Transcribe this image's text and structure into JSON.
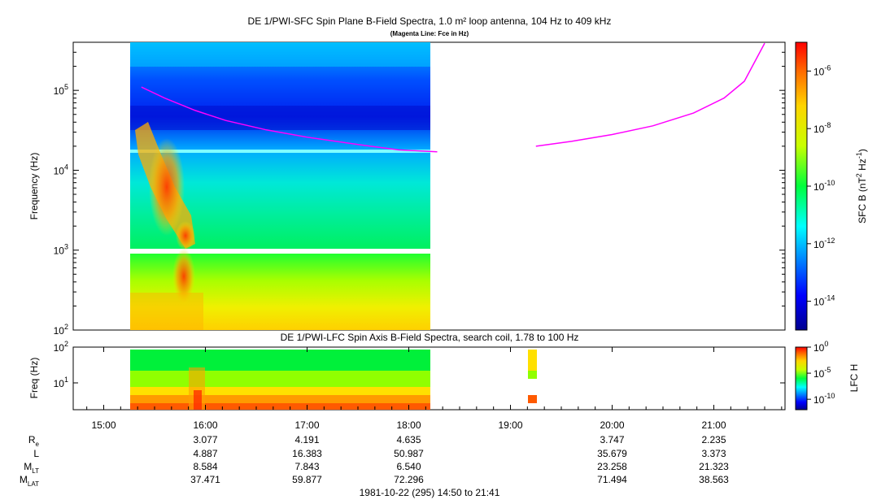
{
  "chart_data": [
    {
      "type": "heatmap",
      "title": "DE 1/PWI-SFC  Spin Plane B-Field Spectra, 1.0 m² loop antenna, 104 Hz to 409 kHz",
      "subtitle": "(Magenta Line: Fce in Hz)",
      "ylabel": "Frequency (Hz)",
      "yscale": "log",
      "ylim": [
        100,
        400000
      ],
      "yticks": [
        {
          "v": 100,
          "exp": "2"
        },
        {
          "v": 1000,
          "exp": "3"
        },
        {
          "v": 10000,
          "exp": "4"
        },
        {
          "v": 100000,
          "exp": "5"
        }
      ],
      "xlim": [
        14.7,
        21.7
      ],
      "data_extent_hours": [
        15.37,
        18.28
      ],
      "colorbar": {
        "label": "SFC B (nT",
        "label_sup": "2",
        "label_mid": " Hz",
        "label_sup2": "-1",
        "label_end": ")",
        "scale": "log",
        "range": [
          1e-15,
          1e-05
        ],
        "ticks": [
          {
            "v": 1e-06,
            "exp": "-6"
          },
          {
            "v": 1e-08,
            "exp": "-8"
          },
          {
            "v": 1e-10,
            "exp": "-10"
          },
          {
            "v": 1e-12,
            "exp": "-12"
          },
          {
            "v": 1e-14,
            "exp": "-14"
          }
        ]
      },
      "series": [
        {
          "name": "Fce",
          "color": "#ff00ff",
          "segments": [
            [
              [
                15.37,
                110000
              ],
              [
                15.6,
                80000
              ],
              [
                15.9,
                56000
              ],
              [
                16.2,
                42000
              ],
              [
                16.6,
                32000
              ],
              [
                17.0,
                26000
              ],
              [
                17.5,
                21000
              ],
              [
                17.9,
                18000
              ],
              [
                18.28,
                17000
              ]
            ],
            [
              [
                19.25,
                20000
              ],
              [
                19.6,
                23000
              ],
              [
                20.0,
                28000
              ],
              [
                20.4,
                36000
              ],
              [
                20.8,
                52000
              ],
              [
                21.1,
                80000
              ],
              [
                21.3,
                130000
              ],
              [
                21.5,
                390000
              ]
            ]
          ]
        }
      ]
    },
    {
      "type": "heatmap",
      "title": "DE 1/PWI-LFC  Spin Axis B-Field Spectra, search coil, 1.78 to 100 Hz",
      "ylabel": "Freq (Hz)",
      "yscale": "log",
      "ylim": [
        1.78,
        100
      ],
      "yticks": [
        {
          "v": 10,
          "exp": "1"
        },
        {
          "v": 100,
          "exp": "2"
        }
      ],
      "xlim": [
        14.7,
        21.7
      ],
      "xticks": [
        {
          "v": 15,
          "label": "15:00"
        },
        {
          "v": 16,
          "label": "16:00"
        },
        {
          "v": 17,
          "label": "17:00"
        },
        {
          "v": 18,
          "label": "18:00"
        },
        {
          "v": 19,
          "label": "19:00"
        },
        {
          "v": 20,
          "label": "20:00"
        },
        {
          "v": 21,
          "label": "21:00"
        }
      ],
      "colorbar": {
        "label": "LFC H",
        "scale": "log",
        "range": [
          1e-12,
          1
        ],
        "ticks": [
          {
            "v": 1,
            "exp": "0"
          },
          {
            "v": 1e-05,
            "exp": "-5"
          },
          {
            "v": 1e-10,
            "exp": "-10"
          }
        ]
      }
    }
  ],
  "ephemeris": {
    "rows": [
      {
        "label": "R",
        "sub": "e",
        "values": [
          "",
          "3.077",
          "4.191",
          "4.635",
          "",
          "3.747",
          "2.235"
        ]
      },
      {
        "label": "L",
        "sub": "",
        "values": [
          "",
          "4.887",
          "16.383",
          "50.987",
          "",
          "35.679",
          "3.373"
        ]
      },
      {
        "label": "M",
        "sub": "LT",
        "values": [
          "",
          "8.584",
          "7.843",
          "6.540",
          "",
          "23.258",
          "21.323"
        ]
      },
      {
        "label": "M",
        "sub": "LAT",
        "values": [
          "",
          "37.471",
          "59.877",
          "72.296",
          "",
          "71.494",
          "38.563"
        ]
      }
    ]
  },
  "footer": "1981-10-22 (295) 14:50 to 21:41"
}
